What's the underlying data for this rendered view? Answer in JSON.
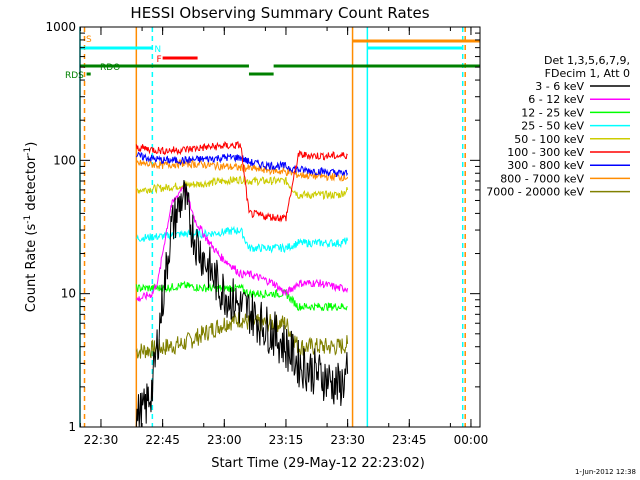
{
  "chart_data": {
    "type": "line",
    "title": "HESSI Observing Summary Count Rates",
    "xlabel": "Start Time (29-May-12 22:23:02)",
    "ylabel_main": "Count Rate (s",
    "ylabel_sup1": "-1",
    "ylabel_mid": " detector",
    "ylabel_sup2": "-1",
    "ylabel_end": ")",
    "ylog": true,
    "ylim": [
      1,
      1000
    ],
    "xlim_minutes_after_2220": [
      4.9,
      102.2
    ],
    "x_ticks": [
      {
        "label": "22:30",
        "m": 10
      },
      {
        "label": "22:45",
        "m": 25
      },
      {
        "label": "23:00",
        "m": 40
      },
      {
        "label": "23:15",
        "m": 55
      },
      {
        "label": "23:30",
        "m": 70
      },
      {
        "label": "23:45",
        "m": 85
      },
      {
        "label": "00:00",
        "m": 100
      }
    ],
    "y_ticks": [
      {
        "label": "1",
        "v": 1
      },
      {
        "label": "10",
        "v": 10
      },
      {
        "label": "100",
        "v": 100
      },
      {
        "label": "1000",
        "v": 1000
      }
    ],
    "legend": {
      "header1": "Det 1,3,5,6,7,9,",
      "header2": "FDecim 1, Att 0",
      "placement": "right"
    },
    "series": [
      {
        "name": "3 - 6 keV",
        "color": "#000000",
        "x": [
          18.6,
          20.5,
          22.5,
          24.0,
          25.5,
          27.0,
          30.0,
          33.0,
          36.0,
          39.0,
          42.0,
          44.0,
          46.0,
          49.0,
          52.0,
          55.0,
          58.0,
          63.0,
          68.0,
          70.0
        ],
        "y": [
          1.2,
          1.3,
          2.0,
          5.0,
          12.0,
          30.0,
          55.0,
          25.0,
          16.0,
          11.0,
          9.0,
          8.0,
          7.5,
          6.0,
          5.0,
          4.0,
          3.0,
          2.5,
          2.0,
          2.5
        ]
      },
      {
        "name": "6 - 12 keV",
        "color": "#ff00ff",
        "x": [
          18.6,
          22.5,
          24.0,
          25.5,
          27.0,
          30.0,
          33.0,
          36.0,
          39.0,
          42.0,
          44.0,
          46.0,
          49.0,
          52.0,
          55.0,
          58.0,
          63.0,
          68.0,
          70.0
        ],
        "y": [
          9.0,
          10.0,
          13.0,
          25.0,
          45.0,
          65.0,
          35.0,
          25.0,
          19.0,
          16.0,
          14.0,
          14.0,
          13.0,
          12.0,
          10.0,
          12.0,
          12.0,
          11.0,
          11.0
        ]
      },
      {
        "name": "12 - 25 keV",
        "color": "#00ff00",
        "x": [
          18.6,
          25.0,
          30.0,
          35.0,
          40.0,
          44.0,
          46.0,
          50.0,
          55.0,
          58.0,
          63.0,
          68.0,
          70.0
        ],
        "y": [
          11.0,
          11.0,
          11.5,
          11.0,
          11.0,
          11.0,
          10.0,
          10.0,
          10.0,
          8.0,
          8.0,
          8.0,
          8.0
        ]
      },
      {
        "name": "25 - 50 keV",
        "color": "#00ffff",
        "x": [
          18.6,
          25.0,
          30.0,
          35.0,
          40.0,
          44.0,
          46.0,
          50.0,
          55.0,
          58.0,
          63.0,
          68.0,
          70.0
        ],
        "y": [
          26.0,
          27.0,
          28.0,
          28.0,
          29.0,
          30.0,
          22.0,
          22.0,
          22.0,
          24.0,
          24.0,
          24.0,
          25.0
        ]
      },
      {
        "name": "50 - 100 keV",
        "color": "#cccc00",
        "x": [
          18.6,
          25.0,
          30.0,
          35.0,
          40.0,
          44.0,
          46.0,
          50.0,
          55.0,
          58.0,
          63.0,
          68.0,
          70.0
        ],
        "y": [
          60.0,
          62.0,
          65.0,
          67.0,
          70.0,
          72.0,
          70.0,
          70.0,
          70.0,
          55.0,
          55.0,
          55.0,
          60.0
        ]
      },
      {
        "name": "100 - 300 keV",
        "color": "#ff0000",
        "x": [
          18.6,
          25.0,
          30.0,
          35.0,
          40.0,
          44.0,
          46.0,
          50.0,
          55.0,
          58.0,
          63.0,
          68.0,
          70.0
        ],
        "y": [
          125.0,
          118.0,
          120.0,
          125.0,
          128.0,
          130.0,
          40.0,
          38.0,
          37.0,
          110.0,
          108.0,
          108.0,
          110.0
        ]
      },
      {
        "name": "300 - 800 keV",
        "color": "#0000ff",
        "x": [
          18.6,
          25.0,
          30.0,
          35.0,
          40.0,
          44.0,
          46.0,
          50.0,
          55.0,
          58.0,
          63.0,
          68.0,
          70.0
        ],
        "y": [
          108.0,
          100.0,
          100.0,
          102.0,
          105.0,
          105.0,
          97.0,
          92.0,
          90.0,
          85.0,
          83.0,
          80.0,
          80.0
        ]
      },
      {
        "name": "800 - 7000 keV",
        "color": "#ff8c00",
        "x": [
          18.6,
          25.0,
          30.0,
          35.0,
          40.0,
          44.0,
          46.0,
          50.0,
          55.0,
          58.0,
          63.0,
          68.0,
          70.0
        ],
        "y": [
          95.0,
          92.0,
          95.0,
          93.0,
          90.0,
          88.0,
          87.0,
          85.0,
          82.0,
          78.0,
          76.0,
          75.0,
          75.0
        ]
      },
      {
        "name": "7000 - 20000 keV",
        "color": "#808000",
        "x": [
          18.6,
          22.0,
          26.0,
          30.0,
          35.0,
          40.0,
          44.0,
          46.0,
          50.0,
          55.0,
          58.0,
          63.0,
          68.0,
          70.0
        ],
        "y": [
          3.7,
          3.8,
          4.0,
          4.2,
          5.0,
          6.0,
          6.5,
          6.0,
          6.0,
          6.0,
          4.0,
          4.0,
          4.0,
          4.2
        ]
      }
    ],
    "flags": [
      {
        "name": "S",
        "color": "#ff8c00"
      },
      {
        "name": "N",
        "color": "#00ffff"
      },
      {
        "name": "F",
        "color": "#ff0000"
      },
      {
        "name": "RDO",
        "color": "#008000"
      },
      {
        "name": "RDS",
        "color": "#008000"
      }
    ],
    "vertical_markers": [
      {
        "m": 4.9,
        "color": "#00ffff",
        "style": "solid"
      },
      {
        "m": 6.0,
        "color": "#ff8c00",
        "style": "dashed"
      },
      {
        "m": 18.6,
        "color": "#ff8c00",
        "style": "solid"
      },
      {
        "m": 22.5,
        "color": "#00ffff",
        "style": "dashed"
      },
      {
        "m": 71.2,
        "color": "#ff8c00",
        "style": "solid"
      },
      {
        "m": 74.8,
        "color": "#00ffff",
        "style": "solid"
      },
      {
        "m": 98.0,
        "color": "#00ffff",
        "style": "dashed"
      },
      {
        "m": 98.6,
        "color": "#ff8c00",
        "style": "dashed"
      }
    ],
    "timestamp": "1-Jun-2012 12:38"
  }
}
